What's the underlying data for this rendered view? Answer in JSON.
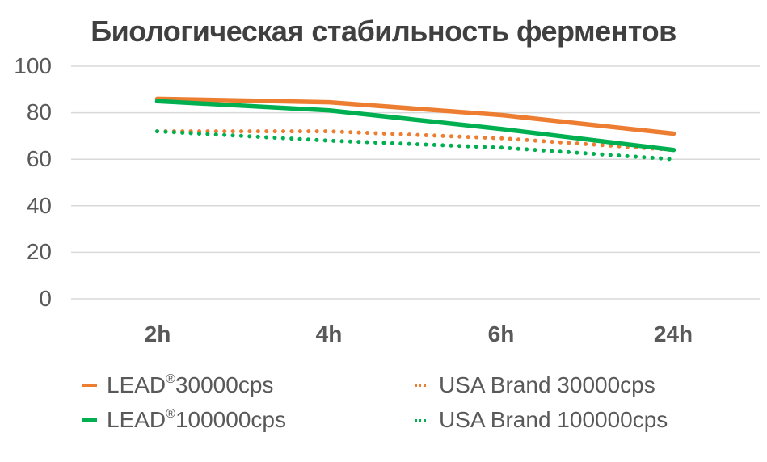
{
  "title": "Биологическая стабильность ферментов",
  "chart_data": {
    "type": "line",
    "title": "Биологическая стабильность ферментов",
    "xlabel": "",
    "ylabel": "",
    "categories": [
      "2h",
      "4h",
      "6h",
      "24h"
    ],
    "ylim": [
      0,
      100
    ],
    "yticks": [
      0,
      20,
      40,
      60,
      80,
      100
    ],
    "grid": true,
    "legend_position": "bottom",
    "series": [
      {
        "name": "LEAD®30000cps",
        "values": [
          86,
          84.5,
          79,
          71
        ],
        "color": "#ED7D31",
        "style": "solid"
      },
      {
        "name": "LEAD®100000cps",
        "values": [
          85,
          81,
          73,
          64
        ],
        "color": "#00B050",
        "style": "solid"
      },
      {
        "name": "USA Brand 30000cps",
        "values": [
          72,
          72,
          69,
          64
        ],
        "color": "#ED7D31",
        "style": "dotted"
      },
      {
        "name": "USA Brand 100000cps",
        "values": [
          72,
          68,
          65,
          60
        ],
        "color": "#00B050",
        "style": "dotted"
      }
    ]
  },
  "yaxis": {
    "ticks": [
      "100",
      "80",
      "60",
      "40",
      "20",
      "0"
    ]
  },
  "xaxis": {
    "ticks": [
      "2h",
      "4h",
      "6h",
      "24h"
    ]
  },
  "legend": {
    "items": [
      {
        "prefix": "LEAD",
        "sup": "®",
        "suffix": "30000cps",
        "color": "#ED7D31",
        "style": "solid"
      },
      {
        "label": "USA Brand 30000cps",
        "color": "#ED7D31",
        "style": "dotted"
      },
      {
        "prefix": "LEAD",
        "sup": "®",
        "suffix": "100000cps",
        "color": "#00B050",
        "style": "solid"
      },
      {
        "label": "USA Brand 100000cps",
        "color": "#00B050",
        "style": "dotted"
      }
    ]
  }
}
